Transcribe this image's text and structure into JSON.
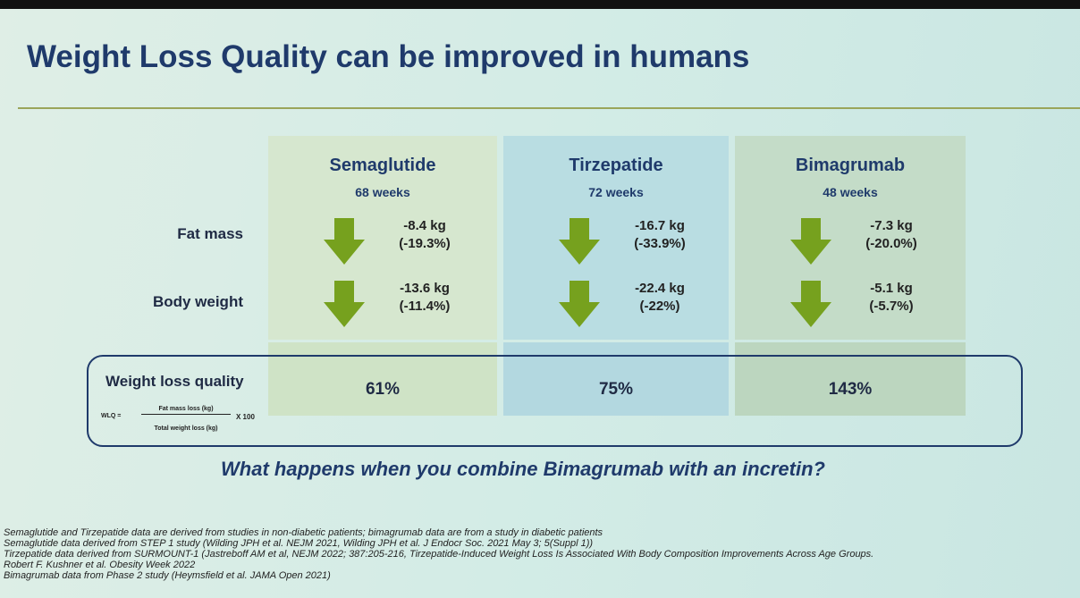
{
  "title": "Weight Loss Quality can be improved in humans",
  "row_labels": [
    "Fat mass",
    "Body weight"
  ],
  "columns": [
    {
      "name": "Semaglutide",
      "duration": "68 weeks",
      "fat_mass": [
        "-8.4 kg",
        "(-19.3%)"
      ],
      "body_weight": [
        "-13.6 kg",
        "(-11.4%)"
      ],
      "quality": "61%"
    },
    {
      "name": "Tirzepatide",
      "duration": "72 weeks",
      "fat_mass": [
        "-16.7 kg",
        "(-33.9%)"
      ],
      "body_weight": [
        "-22.4 kg",
        "(-22%)"
      ],
      "quality": "75%"
    },
    {
      "name": "Bimagrumab",
      "duration": "48 weeks",
      "fat_mass": [
        "-7.3 kg",
        "(-20.0%)"
      ],
      "body_weight": [
        "-5.1 kg",
        "(-5.7%)"
      ],
      "quality": "143%"
    }
  ],
  "quality_label": "Weight loss quality",
  "formula": {
    "lhs": "WLQ =",
    "numerator": "Fat mass loss (kg)",
    "denominator": "Total weight loss (kg)",
    "factor": "X 100"
  },
  "question": "What happens when you combine Bimagrumab with an incretin?",
  "footnotes": [
    "Semaglutide and Tirzepatide data are derived from studies in non-diabetic patients; bimagrumab data are from a study in diabetic patients",
    "Semaglutide data derived from STEP 1 study (Wilding JPH et al. NEJM 2021, Wilding JPH et al. J Endocr Soc. 2021 May 3; 5(Suppl 1))",
    "Tirzepatide data derived from SURMOUNT-1 (Jastreboff AM et al, NEJM 2022; 387:205-216, Tirzepatide-Induced Weight Loss Is Associated With Body Composition Improvements Across Age Groups.",
    "Robert F. Kushner et al. Obesity Week 2022",
    "Bimagrumab data from Phase 2 study (Heymsfield et al. JAMA Open 2021)"
  ]
}
